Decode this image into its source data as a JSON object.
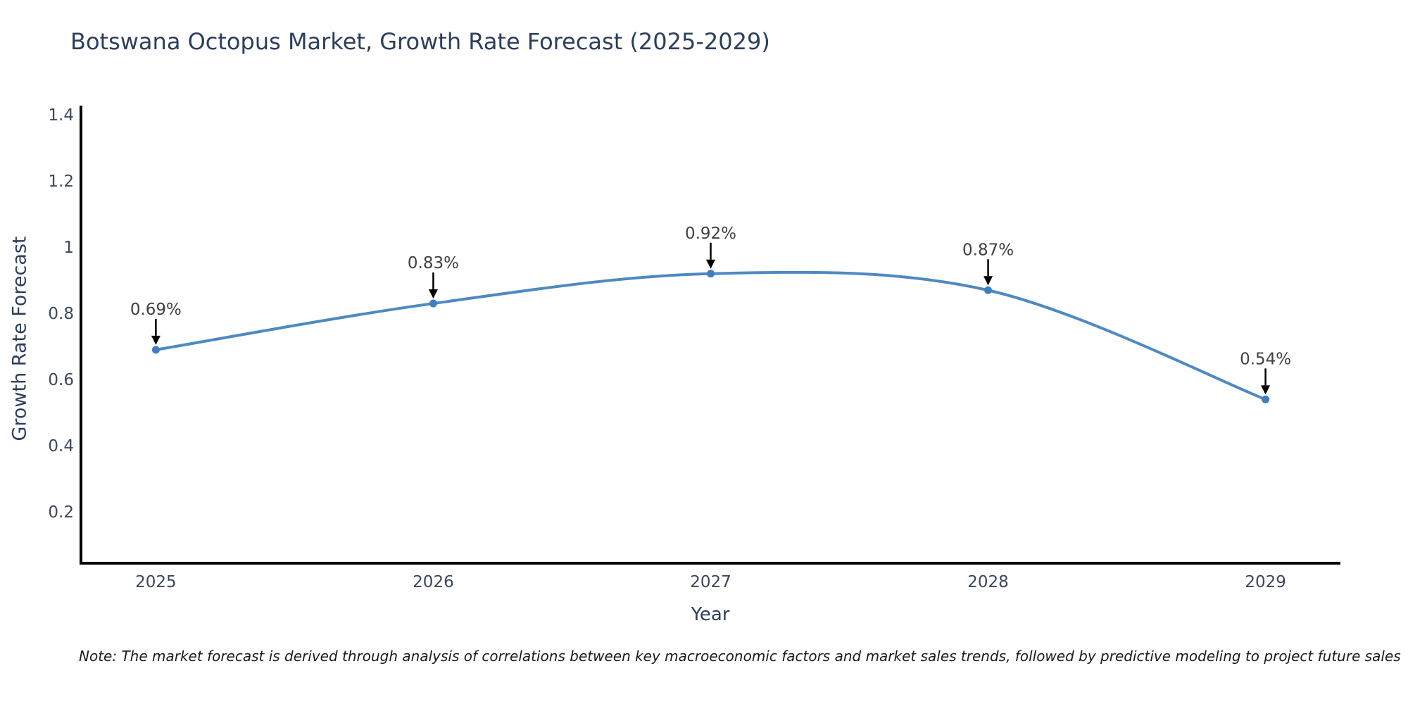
{
  "footnote": {
    "text": "Note: The market forecast is derived through analysis of correlations between key macroeconomic factors and market sales trends, followed by predictive modeling to project future sales"
  },
  "chart_data": {
    "type": "line",
    "title": "Botswana Octopus Market, Growth Rate Forecast (2025-2029)",
    "xlabel": "Year",
    "ylabel": "Growth Rate Forecast",
    "x": [
      2025,
      2026,
      2027,
      2028,
      2029
    ],
    "x_tick_labels": [
      "2025",
      "2026",
      "2027",
      "2028",
      "2029"
    ],
    "series": [
      {
        "name": "Growth Rate Forecast",
        "values": [
          0.69,
          0.83,
          0.92,
          0.87,
          0.54
        ]
      }
    ],
    "point_labels": [
      "0.69%",
      "0.83%",
      "0.92%",
      "0.87%",
      "0.54%"
    ],
    "yticks": [
      0.2,
      0.4,
      0.6,
      0.8,
      1,
      1.2,
      1.4
    ],
    "ytick_labels": [
      "0.2",
      "0.4",
      "0.6",
      "0.8",
      "1",
      "1.2",
      "1.4"
    ],
    "xlim": [
      2024.73,
      2029.27
    ],
    "ylim": [
      0.045,
      1.428
    ],
    "grid": false,
    "legend": false,
    "line_shape": "spline",
    "annotation_style": "down-arrow-to-point",
    "colors": {
      "line": "#4e8ac1",
      "marker": "#3d7fbf",
      "axis_line": "#000000",
      "tick_label": "#39485e",
      "axis_title": "#2a3f5f",
      "chart_title": "#2a3f5f",
      "annotation_text": "#404040",
      "annotation_arrow": "#000000",
      "background": "#ffffff"
    }
  }
}
